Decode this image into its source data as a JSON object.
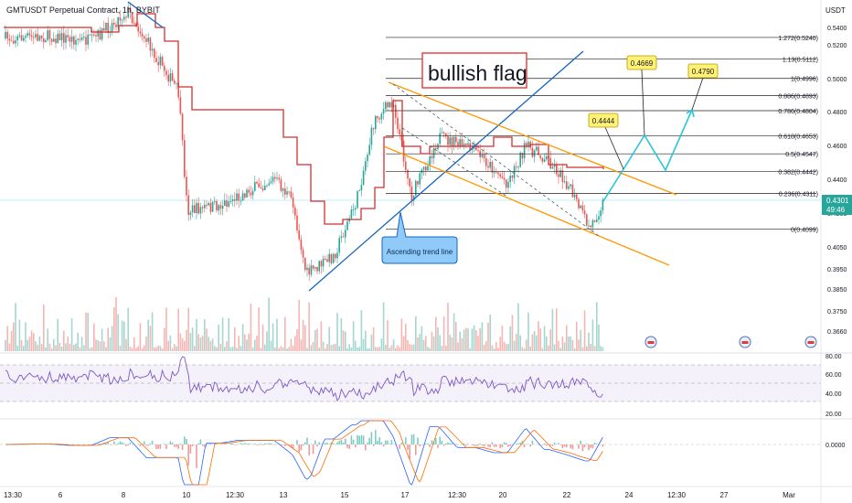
{
  "chart_data": {
    "type": "candlestick",
    "title": "GMTUSDT Perpetual Contract, 1h, BYBIT",
    "currency": "USDT",
    "price_axis": {
      "ticks": [
        "0.5400",
        "0.5200",
        "0.5000",
        "0.4800",
        "0.4600",
        "0.4400",
        "0.4200",
        "0.4050",
        "0.3950",
        "0.3850",
        "0.3750",
        "0.3660"
      ],
      "last_price": "0.4301",
      "countdown": "49:46"
    },
    "time_axis": {
      "ticks": [
        "13:30",
        "6",
        "8",
        "10",
        "12:30",
        "13",
        "15",
        "17",
        "12:30",
        "20",
        "22",
        "24",
        "12:30",
        "27",
        "Mar"
      ]
    },
    "fibonacci_levels": [
      {
        "ratio": "1.272",
        "price": "0.5240",
        "label": "1.272(0.5240)"
      },
      {
        "ratio": "1.13",
        "price": "0.5112",
        "label": "1.13(0.5112)"
      },
      {
        "ratio": "1",
        "price": "0.4996",
        "label": "1(0.4996)"
      },
      {
        "ratio": "0.886",
        "price": "0.4893",
        "label": "0.886(0.4893)"
      },
      {
        "ratio": "0.786",
        "price": "0.4804",
        "label": "0.786(0.4804)"
      },
      {
        "ratio": "0.618",
        "price": "0.4653",
        "label": "0.618(0.4653)"
      },
      {
        "ratio": "0.5",
        "price": "0.4547",
        "label": "0.5(0.4547)"
      },
      {
        "ratio": "0.382",
        "price": "0.4442",
        "label": "0.382(0.4442)"
      },
      {
        "ratio": "0.236",
        "price": "0.4311",
        "label": "0.236(0.4311)"
      },
      {
        "ratio": "0",
        "price": "0.4099",
        "label": "0(0.4099)"
      }
    ],
    "annotations": {
      "pattern_label": "bullish flag",
      "trend_label": "Ascending trend line",
      "targets": [
        "0.4444",
        "0.4669",
        "0.4790"
      ]
    },
    "rsi": {
      "levels": [
        "80.00",
        "60.00",
        "40.00",
        "20.00"
      ]
    },
    "macd": {
      "zero_label": "0.0000"
    },
    "colors": {
      "up": "#26a69a",
      "down": "#ef5350",
      "trend": "#1565c0",
      "channel": "#ff9800",
      "supertrend": "#d32f2f",
      "projection": "#26c6da",
      "rsi": "#7e57c2",
      "label_box": "#fff176",
      "flag_border": "#e53935"
    }
  }
}
